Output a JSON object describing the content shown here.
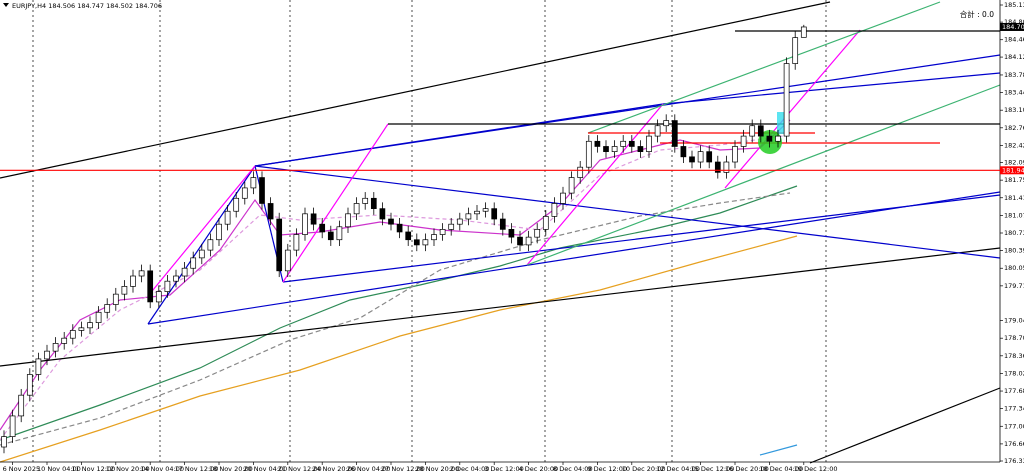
{
  "chart_data": {
    "type": "candlestick",
    "symbol": "EURJPY,H4",
    "counter": "合計 : 0.0",
    "categories": [
      null,
      "6 Nov 2025",
      null,
      null,
      null,
      "10 Nov 04:00",
      null,
      null,
      null,
      "11 Nov 12:00",
      null,
      null,
      null,
      "12 Nov 20:00",
      null,
      null,
      null,
      "14 Nov 04:00",
      null,
      null,
      null,
      "17 Nov 12:00",
      null,
      null,
      null,
      "18 Nov 20:00",
      null,
      null,
      null,
      "20 Nov 04:00",
      null,
      null,
      null,
      "21 Nov 12:00",
      null,
      null,
      null,
      "24 Nov 20:00",
      null,
      null,
      null,
      "26 Nov 04:00",
      null,
      null,
      null,
      "27 Nov 12:00",
      null,
      null,
      null,
      "28 Nov 20:00",
      null,
      null,
      null,
      "2 Dec 04:00",
      null,
      null,
      null,
      "3 Dec 12:00",
      null,
      null,
      null,
      "4 Dec 20:00",
      null,
      null,
      null,
      "8 Dec 04:00",
      null,
      null,
      null,
      "9 Dec 12:00",
      null,
      null,
      null,
      "10 Dec 20:00",
      null,
      null,
      null,
      "12 Dec 04:00",
      null,
      null,
      null,
      "15 Dec 12:00",
      null,
      null,
      null,
      "16 Dec 20:00",
      null,
      null,
      null,
      "18 Dec 04:00",
      null,
      null,
      null,
      "19 Dec 12:00"
    ],
    "ohlc": [
      [
        176.6,
        176.92,
        176.48,
        176.8
      ],
      [
        176.8,
        177.32,
        176.68,
        177.2
      ],
      [
        177.2,
        177.72,
        177.08,
        177.6
      ],
      [
        177.6,
        178.12,
        177.48,
        178.0
      ],
      [
        178.0,
        178.42,
        177.88,
        178.3
      ],
      [
        178.3,
        178.57,
        178.18,
        178.45
      ],
      [
        178.45,
        178.72,
        178.33,
        178.6
      ],
      [
        178.6,
        178.82,
        178.48,
        178.7
      ],
      [
        178.7,
        178.97,
        178.58,
        178.85
      ],
      [
        178.85,
        179.02,
        178.73,
        178.9
      ],
      [
        178.9,
        179.12,
        178.78,
        179.0
      ],
      [
        179.0,
        179.32,
        178.88,
        179.2
      ],
      [
        179.2,
        179.47,
        179.08,
        179.35
      ],
      [
        179.35,
        179.67,
        179.23,
        179.55
      ],
      [
        179.55,
        179.82,
        179.43,
        179.7
      ],
      [
        179.7,
        180.02,
        179.58,
        179.9
      ],
      [
        179.9,
        180.12,
        179.78,
        180.0
      ],
      [
        180.0,
        180.12,
        179.28,
        179.4
      ],
      [
        179.4,
        179.72,
        179.28,
        179.6
      ],
      [
        179.6,
        179.92,
        179.48,
        179.8
      ],
      [
        179.8,
        180.02,
        179.68,
        179.9
      ],
      [
        179.9,
        180.17,
        179.78,
        180.05
      ],
      [
        180.05,
        180.37,
        179.93,
        180.25
      ],
      [
        180.25,
        180.52,
        180.13,
        180.4
      ],
      [
        180.4,
        180.72,
        180.28,
        180.6
      ],
      [
        180.6,
        181.02,
        180.48,
        180.9
      ],
      [
        180.9,
        181.27,
        180.78,
        181.15
      ],
      [
        181.15,
        181.52,
        181.03,
        181.4
      ],
      [
        181.4,
        181.72,
        181.28,
        181.6
      ],
      [
        181.6,
        181.92,
        181.48,
        181.8
      ],
      [
        181.8,
        181.92,
        181.18,
        181.3
      ],
      [
        181.3,
        181.42,
        180.88,
        181.0
      ],
      [
        181.0,
        181.12,
        179.88,
        180.0
      ],
      [
        180.0,
        180.52,
        179.88,
        180.4
      ],
      [
        180.4,
        180.82,
        180.28,
        180.7
      ],
      [
        180.7,
        181.22,
        180.58,
        181.1
      ],
      [
        181.1,
        181.22,
        180.78,
        180.9
      ],
      [
        180.9,
        181.02,
        180.63,
        180.75
      ],
      [
        180.75,
        180.87,
        180.48,
        180.6
      ],
      [
        180.6,
        180.97,
        180.48,
        180.85
      ],
      [
        180.85,
        181.22,
        180.73,
        181.1
      ],
      [
        181.1,
        181.42,
        180.98,
        181.3
      ],
      [
        181.3,
        181.52,
        181.18,
        181.4
      ],
      [
        181.4,
        181.52,
        181.08,
        181.2
      ],
      [
        181.2,
        181.32,
        180.88,
        181.0
      ],
      [
        181.0,
        181.12,
        180.78,
        180.9
      ],
      [
        180.9,
        181.02,
        180.63,
        180.75
      ],
      [
        180.75,
        180.87,
        180.48,
        180.6
      ],
      [
        180.6,
        180.72,
        180.38,
        180.5
      ],
      [
        180.5,
        180.72,
        180.38,
        180.6
      ],
      [
        180.6,
        180.82,
        180.48,
        180.7
      ],
      [
        180.7,
        180.92,
        180.58,
        180.8
      ],
      [
        180.8,
        181.02,
        180.68,
        180.9
      ],
      [
        180.9,
        181.12,
        180.78,
        181.0
      ],
      [
        181.0,
        181.22,
        180.88,
        181.1
      ],
      [
        181.1,
        181.27,
        180.98,
        181.15
      ],
      [
        181.15,
        181.32,
        181.03,
        181.2
      ],
      [
        181.2,
        181.32,
        180.88,
        181.0
      ],
      [
        181.0,
        181.12,
        180.68,
        180.8
      ],
      [
        180.8,
        180.92,
        180.53,
        180.65
      ],
      [
        180.65,
        180.77,
        180.38,
        180.5
      ],
      [
        180.5,
        180.77,
        180.38,
        180.65
      ],
      [
        180.65,
        180.92,
        180.53,
        180.8
      ],
      [
        180.8,
        181.17,
        180.68,
        181.05
      ],
      [
        181.05,
        181.42,
        180.93,
        181.3
      ],
      [
        181.3,
        181.62,
        181.18,
        181.5
      ],
      [
        181.5,
        181.92,
        181.38,
        181.8
      ],
      [
        181.8,
        182.12,
        181.68,
        182.0
      ],
      [
        182.0,
        182.62,
        181.88,
        182.5
      ],
      [
        182.5,
        182.62,
        182.28,
        182.4
      ],
      [
        182.4,
        182.52,
        182.18,
        182.3
      ],
      [
        182.3,
        182.52,
        182.18,
        182.4
      ],
      [
        182.4,
        182.62,
        182.28,
        182.5
      ],
      [
        182.5,
        182.62,
        182.28,
        182.4
      ],
      [
        182.4,
        182.52,
        182.18,
        182.3
      ],
      [
        182.3,
        182.72,
        182.18,
        182.6
      ],
      [
        182.6,
        182.92,
        182.48,
        182.8
      ],
      [
        182.8,
        183.02,
        182.68,
        182.9
      ],
      [
        182.9,
        183.02,
        182.28,
        182.4
      ],
      [
        182.4,
        182.52,
        182.08,
        182.2
      ],
      [
        182.2,
        182.32,
        181.98,
        182.1
      ],
      [
        182.1,
        182.42,
        181.98,
        182.3
      ],
      [
        182.3,
        182.42,
        181.98,
        182.1
      ],
      [
        182.1,
        182.22,
        181.78,
        181.9
      ],
      [
        181.9,
        182.22,
        181.78,
        182.1
      ],
      [
        182.1,
        182.52,
        181.98,
        182.4
      ],
      [
        182.4,
        182.72,
        182.28,
        182.6
      ],
      [
        182.6,
        182.92,
        182.48,
        182.8
      ],
      [
        182.8,
        182.92,
        182.48,
        182.6
      ],
      [
        182.6,
        182.72,
        182.38,
        182.5
      ],
      [
        182.5,
        182.72,
        182.38,
        182.6
      ],
      [
        182.6,
        184.12,
        182.48,
        184.0
      ],
      [
        184.0,
        184.62,
        183.88,
        184.5
      ],
      [
        184.506,
        184.747,
        184.502,
        184.706
      ]
    ],
    "ylim": [
      176.33,
      185.13
    ],
    "yticks": [
      {
        "value": 185.13,
        "label": "185.130"
      },
      {
        "value": 184.8,
        "label": "184.800"
      },
      {
        "value": 184.46,
        "label": "184.460"
      },
      184.125,
      {
        "value": 183.78,
        "label": "183.780"
      },
      {
        "value": 183.44,
        "label": "183.440"
      },
      {
        "value": 183.1,
        "label": "183.100"
      },
      {
        "value": 182.76,
        "label": "182.760"
      },
      {
        "value": 182.42,
        "label": "182.420"
      },
      {
        "value": 182.09,
        "label": "182.090"
      },
      {
        "value": 181.75,
        "label": "181.750"
      },
      {
        "value": 181.41,
        "label": "181.410"
      },
      {
        "value": 181.07,
        "label": "181.070"
      },
      {
        "value": 180.73,
        "label": "180.730"
      },
      {
        "value": 180.39,
        "label": "180.390"
      },
      {
        "value": 180.05,
        "label": "180.050"
      },
      {
        "value": 179.71,
        "label": "179.710"
      },
      {
        "value": 179.04,
        "label": "179.040"
      },
      {
        "value": 178.7,
        "label": "178.700"
      },
      {
        "value": 178.36,
        "label": "178.360"
      },
      {
        "value": 178.02,
        "label": "178.020"
      },
      {
        "value": 177.68,
        "label": "177.680"
      },
      {
        "value": 177.34,
        "label": "177.340"
      },
      {
        "value": 177.0,
        "label": "177.000"
      },
      {
        "value": 176.66,
        "label": "176.660"
      },
      {
        "value": 176.33,
        "label": "176.330"
      }
    ],
    "hline": {
      "value": 181.94,
      "label": "181.940",
      "color": "#ff0000"
    },
    "up_color": "#ffffff",
    "down_color": "#000000"
  }
}
